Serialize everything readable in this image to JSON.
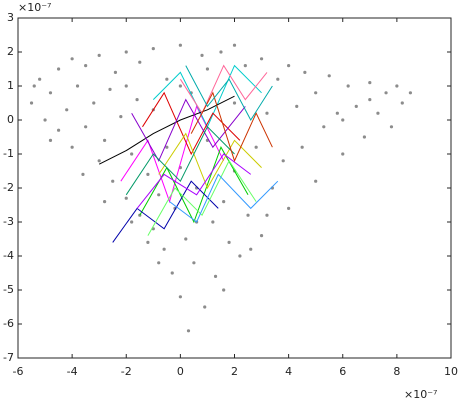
{
  "chart_data": {
    "type": "scatter",
    "x_multiplier": "×10⁻⁷",
    "y_multiplier": "×10⁻⁷",
    "xlim": [
      -6,
      10
    ],
    "xticks": [
      -6,
      -4,
      -2,
      0,
      2,
      4,
      6,
      8,
      10
    ],
    "ylim": [
      -7,
      3
    ],
    "yticks": [
      -7,
      -6,
      -5,
      -4,
      -3,
      -2,
      -1,
      0,
      1,
      2,
      3
    ],
    "color": "#8c8c8c",
    "x": [
      -5.5,
      -5.2,
      -5,
      -4.8,
      -4.5,
      -4.5,
      -4.2,
      -4,
      -4,
      -3.8,
      -3.5,
      -3.5,
      -3.2,
      -3,
      -3,
      -2.8,
      -2.6,
      -2.5,
      -2.4,
      -2.2,
      -2,
      -2,
      -1.8,
      -1.6,
      -1.5,
      -1.5,
      -1.2,
      -1,
      -1,
      -1,
      -0.8,
      -0.6,
      -0.5,
      -0.5,
      -0.3,
      -0.2,
      0,
      0,
      0,
      0.2,
      0.3,
      0.4,
      0.5,
      0.6,
      0.8,
      0.9,
      1,
      1.2,
      1.3,
      1.5,
      1.6,
      1.8,
      2,
      2,
      2.2,
      2.4,
      2.5,
      2.8,
      3,
      3,
      3.2,
      3.4,
      3.6,
      3.8,
      4,
      4,
      4.3,
      4.5,
      4.6,
      5,
      5,
      5.3,
      5.5,
      5.8,
      6,
      6.2,
      6.5,
      6.8,
      7,
      7.3,
      7.6,
      7.8,
      8,
      8.2,
      8.5,
      -3.6,
      -2.8,
      -1.8,
      -1.2,
      -0.8,
      0.6,
      1.6,
      2.6,
      3.2,
      -4.8,
      -5.4,
      -2,
      0,
      1,
      2,
      6,
      7
    ],
    "y": [
      0.5,
      1.2,
      0,
      0.8,
      1.5,
      -0.3,
      0.3,
      1.8,
      -0.8,
      1,
      -0.2,
      1.6,
      0.5,
      -1.2,
      1.9,
      -0.6,
      0.9,
      -1.8,
      1.4,
      0.1,
      -2.3,
      2,
      -1,
      0.6,
      -2.8,
      1.7,
      -1.6,
      -3.2,
      0.3,
      2.1,
      -2.2,
      -3.8,
      1.2,
      -0.8,
      -4.5,
      -2.6,
      2.2,
      -5.2,
      -1.4,
      -3.5,
      -6.2,
      0.8,
      -4.2,
      -2,
      1.9,
      -5.5,
      -0.6,
      -3,
      -4.6,
      2,
      -2.4,
      -3.6,
      0.5,
      -1.5,
      -4,
      1.6,
      -2.8,
      -0.8,
      1.8,
      -3.4,
      0.2,
      -2,
      1.2,
      -1.2,
      1.6,
      -2.6,
      0.4,
      -0.8,
      1.4,
      0.8,
      -1.8,
      -0.2,
      1.3,
      0.2,
      -1,
      1,
      0.4,
      -0.5,
      1.1,
      0.2,
      0.8,
      -0.2,
      1,
      0.5,
      0.8,
      -1.6,
      -2.4,
      -3,
      -3.6,
      -4.2,
      -3,
      -5,
      -3.8,
      -2.8,
      -0.6,
      1,
      1,
      1,
      1.5,
      2.2,
      0,
      0.6
    ],
    "lines": [
      {
        "color": "#ff00ff",
        "x": [
          -2.2,
          -1.2,
          -0.4,
          0.6,
          1.6
        ],
        "y": [
          -1.8,
          -0.6,
          -2.4,
          0.4,
          -1.2
        ]
      },
      {
        "color": "#00cc00",
        "x": [
          -1.5,
          -0.5,
          0.5,
          1.5,
          2.5
        ],
        "y": [
          -2.8,
          -1.4,
          -3,
          -0.8,
          -2.2
        ]
      },
      {
        "color": "#00cccc",
        "x": [
          -1,
          0,
          1,
          2,
          3
        ],
        "y": [
          0.6,
          1.4,
          -0.2,
          1.6,
          0.8
        ]
      },
      {
        "color": "#0000aa",
        "x": [
          -2.5,
          -1.6,
          -0.6,
          0.4,
          1.4
        ],
        "y": [
          -3.6,
          -2.6,
          -3.2,
          -1.8,
          -2.6
        ]
      },
      {
        "color": "#dd0000",
        "x": [
          -1.4,
          -0.6,
          0.4,
          1.2,
          2.2
        ],
        "y": [
          -0.2,
          0.8,
          -1,
          0.2,
          -0.6
        ]
      },
      {
        "color": "#000000",
        "x": [
          -3,
          -2,
          -1,
          0,
          1,
          2
        ],
        "y": [
          -1.3,
          -0.9,
          -0.4,
          0,
          0.3,
          0.7
        ]
      },
      {
        "color": "#cccc00",
        "x": [
          -0.8,
          0.2,
          1,
          2,
          3
        ],
        "y": [
          -1.6,
          -0.4,
          -2,
          -0.6,
          -1.4
        ]
      },
      {
        "color": "#8800cc",
        "x": [
          -1.8,
          -0.8,
          0.2,
          1.2,
          2.4
        ],
        "y": [
          0.2,
          -1.2,
          0.6,
          -0.8,
          0.4
        ]
      },
      {
        "color": "#66ff66",
        "x": [
          -1.2,
          -0.2,
          0.8,
          1.8,
          2.8
        ],
        "y": [
          -3.4,
          -2,
          -2.8,
          -1.2,
          -2.4
        ]
      },
      {
        "color": "#ff6699",
        "x": [
          0,
          0.8,
          1.6,
          2.4,
          3.2
        ],
        "y": [
          1.2,
          0.2,
          1.6,
          0.6,
          1.4
        ]
      },
      {
        "color": "#3399ff",
        "x": [
          -0.4,
          0.6,
          1.4,
          2.6,
          3.6
        ],
        "y": [
          -2.4,
          -3,
          -1.6,
          -2.6,
          -1.8
        ]
      },
      {
        "color": "#009966",
        "x": [
          -2,
          -1,
          0,
          1,
          2
        ],
        "y": [
          -2.2,
          -1,
          -1.8,
          -0.2,
          -1
        ]
      },
      {
        "color": "#cc3300",
        "x": [
          0.4,
          1.2,
          2,
          2.8,
          3.4
        ],
        "y": [
          -0.4,
          0.8,
          -1.2,
          0.2,
          -0.8
        ]
      },
      {
        "color": "#aa00ff",
        "x": [
          -1.6,
          -0.6,
          0.6,
          1.6,
          2.6
        ],
        "y": [
          -2.6,
          -1.6,
          -2.2,
          -1,
          -1.6
        ]
      },
      {
        "color": "#00aaaa",
        "x": [
          0.2,
          1,
          1.8,
          2.6,
          3.4
        ],
        "y": [
          1.6,
          0.4,
          1.2,
          0,
          1
        ]
      }
    ]
  }
}
